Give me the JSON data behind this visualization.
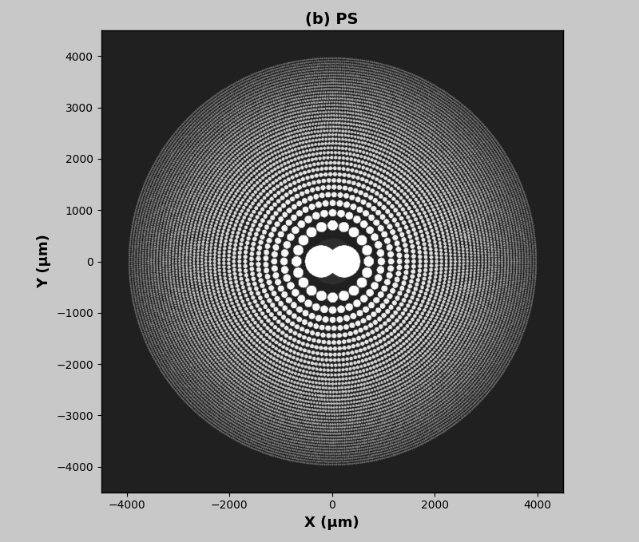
{
  "title": "(b) PS",
  "xlabel": "X (μm)",
  "ylabel": "Y (μm)",
  "xlim": [
    -4500,
    4500
  ],
  "ylim": [
    -4500,
    4500
  ],
  "xticks": [
    -4000,
    -2000,
    0,
    2000,
    4000
  ],
  "yticks": [
    -4000,
    -3000,
    -2000,
    -1000,
    0,
    1000,
    2000,
    3000,
    4000
  ],
  "figsize": [
    8.0,
    6.79
  ],
  "dpi": 100,
  "bg_gray": 0.18,
  "num_zones": 80,
  "r_max_um": 4000,
  "wavelength_um": 0.5,
  "title_fontsize": 14,
  "axis_label_fontsize": 13,
  "grid_size": 800
}
